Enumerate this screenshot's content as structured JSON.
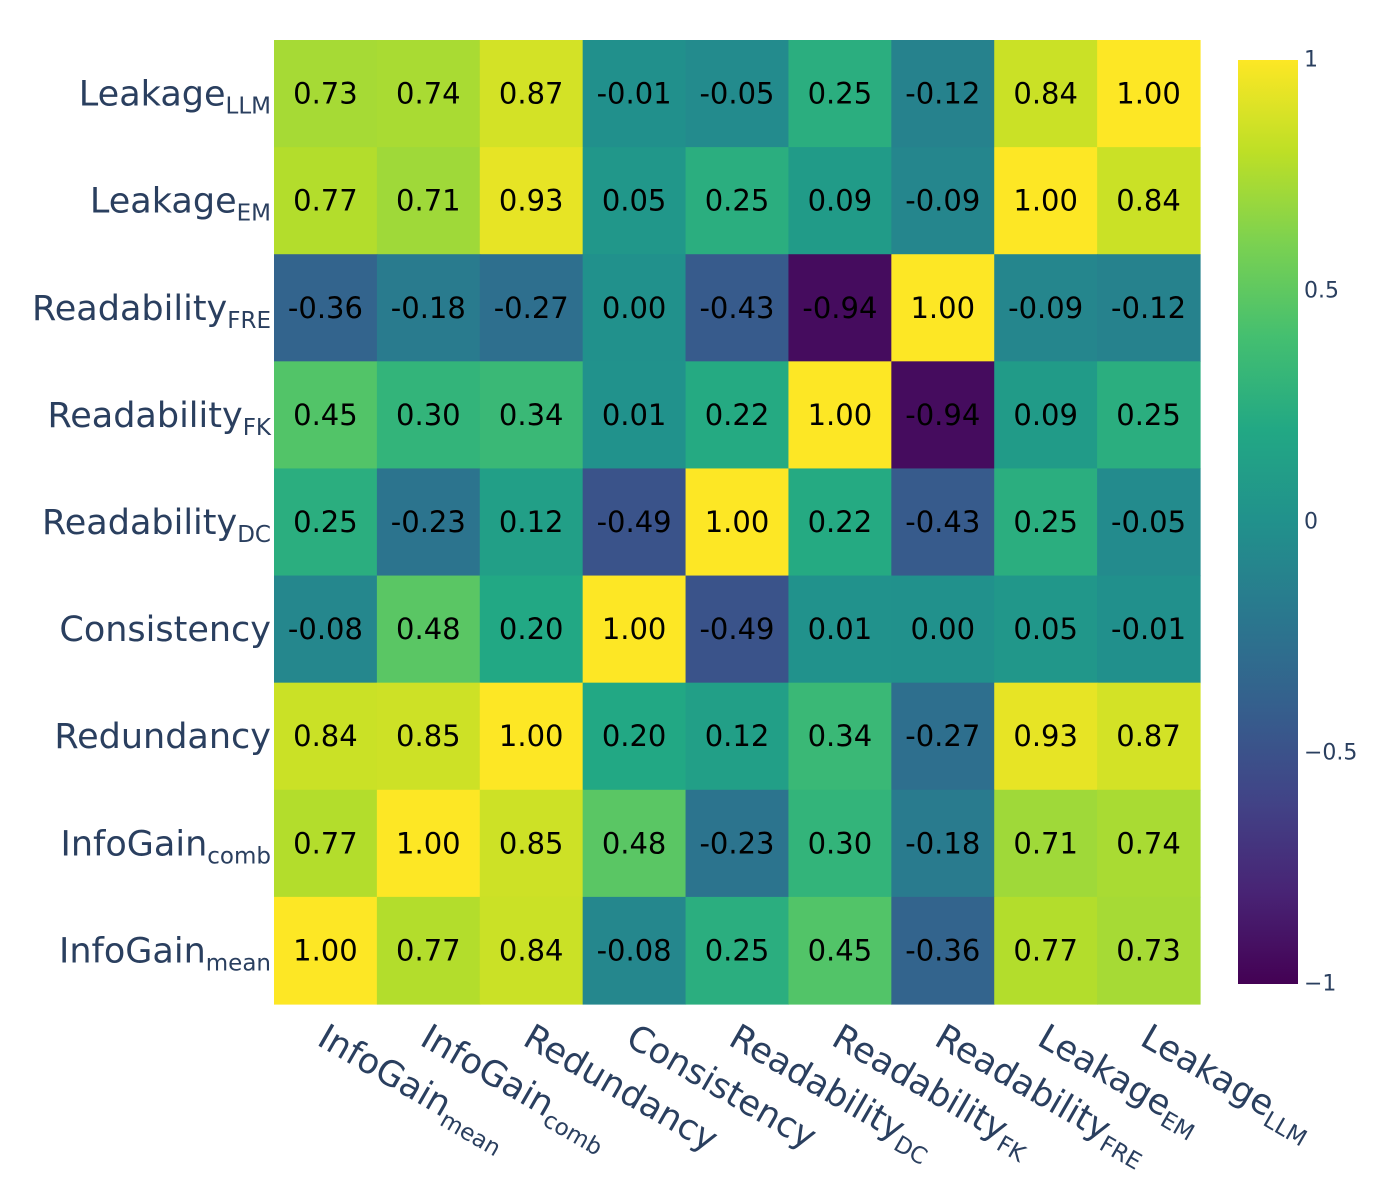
{
  "chart_data": {
    "type": "heatmap",
    "colorscale": "viridis",
    "zmin": -1,
    "zmax": 1,
    "row_labels": [
      {
        "base": "Leakage",
        "sub": "LLM"
      },
      {
        "base": "Leakage",
        "sub": "EM"
      },
      {
        "base": "Readability",
        "sub": "FRE"
      },
      {
        "base": "Readability",
        "sub": "FK"
      },
      {
        "base": "Readability",
        "sub": "DC"
      },
      {
        "base": "Consistency",
        "sub": ""
      },
      {
        "base": "Redundancy",
        "sub": ""
      },
      {
        "base": "InfoGain",
        "sub": "comb"
      },
      {
        "base": "InfoGain",
        "sub": "mean"
      }
    ],
    "col_labels": [
      {
        "base": "InfoGain",
        "sub": "mean"
      },
      {
        "base": "InfoGain",
        "sub": "comb"
      },
      {
        "base": "Redundancy",
        "sub": ""
      },
      {
        "base": "Consistency",
        "sub": ""
      },
      {
        "base": "Readability",
        "sub": "DC"
      },
      {
        "base": "Readability",
        "sub": "FK"
      },
      {
        "base": "Readability",
        "sub": "FRE"
      },
      {
        "base": "Leakage",
        "sub": "EM"
      },
      {
        "base": "Leakage",
        "sub": "LLM"
      }
    ],
    "values": [
      [
        "0.73",
        "0.74",
        "0.87",
        "-0.01",
        "-0.05",
        "0.25",
        "-0.12",
        "0.84",
        "1.00"
      ],
      [
        "0.77",
        "0.71",
        "0.93",
        "0.05",
        "0.25",
        "0.09",
        "-0.09",
        "1.00",
        "0.84"
      ],
      [
        "-0.36",
        "-0.18",
        "-0.27",
        "0.00",
        "-0.43",
        "-0.94",
        "1.00",
        "-0.09",
        "-0.12"
      ],
      [
        "0.45",
        "0.30",
        "0.34",
        "0.01",
        "0.22",
        "1.00",
        "-0.94",
        "0.09",
        "0.25"
      ],
      [
        "0.25",
        "-0.23",
        "0.12",
        "-0.49",
        "1.00",
        "0.22",
        "-0.43",
        "0.25",
        "-0.05"
      ],
      [
        "-0.08",
        "0.48",
        "0.20",
        "1.00",
        "-0.49",
        "0.01",
        "0.00",
        "0.05",
        "-0.01"
      ],
      [
        "0.84",
        "0.85",
        "1.00",
        "0.20",
        "0.12",
        "0.34",
        "-0.27",
        "0.93",
        "0.87"
      ],
      [
        "0.77",
        "1.00",
        "0.85",
        "0.48",
        "-0.23",
        "0.30",
        "-0.18",
        "0.71",
        "0.74"
      ],
      [
        "1.00",
        "0.77",
        "0.84",
        "-0.08",
        "0.25",
        "0.45",
        "-0.36",
        "0.77",
        "0.73"
      ]
    ],
    "colorbar": {
      "tick_values": [
        1,
        0.5,
        0,
        -0.5,
        -1
      ],
      "tick_labels": [
        "1",
        "0.5",
        "0",
        "−0.5",
        "−1"
      ]
    }
  }
}
